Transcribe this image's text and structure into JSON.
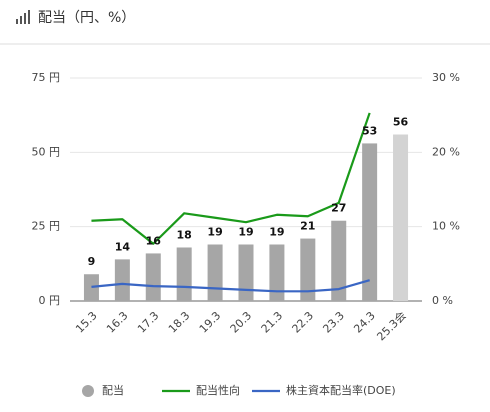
{
  "chart_data": {
    "type": "bar_line",
    "title": "配当（円、%）",
    "categories": [
      "15.3",
      "16.3",
      "17.3",
      "18.3",
      "19.3",
      "20.3",
      "21.3",
      "22.3",
      "23.3",
      "24.3",
      "25.3会"
    ],
    "series": [
      {
        "name": "配当",
        "type": "bar",
        "color": "#a6a6a6",
        "bar_colors": [
          "#a6a6a6",
          "#a6a6a6",
          "#a6a6a6",
          "#a6a6a6",
          "#a6a6a6",
          "#a6a6a6",
          "#a6a6a6",
          "#a6a6a6",
          "#a6a6a6",
          "#a6a6a6",
          "#d3d3d3"
        ],
        "values": [
          9,
          14,
          16,
          18,
          19,
          19,
          19,
          21,
          27,
          53,
          56
        ]
      },
      {
        "name": "配当性向",
        "type": "line",
        "axis": "y2",
        "color": "#1a9a1a",
        "values": [
          10.8,
          11.0,
          7.7,
          11.8,
          11.2,
          10.6,
          11.6,
          11.4,
          13.2,
          25.3,
          null
        ]
      },
      {
        "name": "株主資本配当率(DOE)",
        "type": "line",
        "axis": "y2",
        "color": "#3a66c4",
        "values": [
          1.9,
          2.3,
          2.0,
          1.9,
          1.7,
          1.5,
          1.3,
          1.3,
          1.6,
          2.8,
          null
        ]
      }
    ],
    "ylim": [
      0,
      75
    ],
    "yticks": [
      {
        "value": 0,
        "label": "0 円"
      },
      {
        "value": 25,
        "label": "25 円"
      },
      {
        "value": 50,
        "label": "50 円"
      },
      {
        "value": 75,
        "label": "75 円"
      }
    ],
    "y2lim": [
      0,
      30
    ],
    "y2ticks": [
      {
        "value": 0,
        "label": "0 %"
      },
      {
        "value": 10,
        "label": "10 %"
      },
      {
        "value": 20,
        "label": "20 %"
      },
      {
        "value": 30,
        "label": "30 %"
      }
    ],
    "grid": true,
    "legend": "bottom"
  }
}
